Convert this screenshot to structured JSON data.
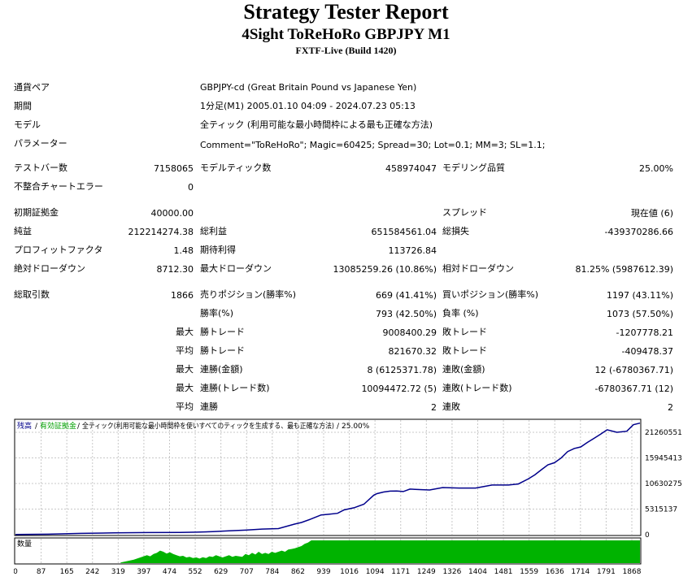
{
  "header": {
    "title": "Strategy Tester Report",
    "subtitle": "4Sight ToReHoRo GBPJPY M1",
    "server": "FXTF-Live (Build 1420)"
  },
  "info": {
    "symbol_label": "通貨ペア",
    "symbol_value": "GBPJPY-cd (Great Britain Pound vs Japanese Yen)",
    "period_label": "期間",
    "period_value": "1分足(M1) 2005.01.10 04:09 - 2024.07.23 05:13",
    "model_label": "モデル",
    "model_value": "全ティック (利用可能な最小時間枠による最も正確な方法)",
    "params_label": "パラメーター",
    "params_value": "Comment=\"ToReHoRo\"; Magic=60425; Spread=30; Lot=0.1; MM=3; SL=1.1;"
  },
  "stats": {
    "bars_label": "テストバー数",
    "bars": "7158065",
    "ticks_label": "モデルティック数",
    "ticks": "458974047",
    "quality_label": "モデリング品質",
    "quality": "25.00%",
    "mismatch_label": "不整合チャートエラー",
    "mismatch": "0",
    "deposit_label": "初期証拠金",
    "deposit": "40000.00",
    "spread_label": "スプレッド",
    "spread": "現在値 (6)",
    "net_label": "純益",
    "net": "212214274.38",
    "gross_profit_label": "総利益",
    "gross_profit": "651584561.04",
    "gross_loss_label": "総損失",
    "gross_loss": "-439370286.66",
    "pf_label": "プロフィットファクタ",
    "pf": "1.48",
    "expected_label": "期待利得",
    "expected": "113726.84",
    "abs_dd_label": "絶対ドローダウン",
    "abs_dd": "8712.30",
    "max_dd_label": "最大ドローダウン",
    "max_dd": "13085259.26 (10.86%)",
    "rel_dd_label": "相対ドローダウン",
    "rel_dd": "81.25% (5987612.39)",
    "total_trades_label": "総取引数",
    "total_trades": "1866",
    "short_label": "売りポジション(勝率%)",
    "short": "669 (41.41%)",
    "long_label": "買いポジション(勝率%)",
    "long": "1197 (43.11%)",
    "win_pct_label": "勝率(%)",
    "win_pct": "793 (42.50%)",
    "loss_pct_label": "負率 (%)",
    "loss_pct": "1073 (57.50%)",
    "max_word": "最大",
    "avg_word": "平均",
    "win_trade_label": "勝トレード",
    "loss_trade_label": "敗トレード",
    "max_win": "9008400.29",
    "max_loss": "-1207778.21",
    "avg_win": "821670.32",
    "avg_loss": "-409478.37",
    "consec_win_money_label": "連勝(金額)",
    "consec_win_money": "8 (6125371.78)",
    "consec_loss_money_label": "連敗(金額)",
    "consec_loss_money": "12 (-6780367.71)",
    "consec_win_count_label": "連勝(トレード数)",
    "consec_win_count": "10094472.72 (5)",
    "consec_loss_count_label": "連敗(トレード数)",
    "consec_loss_count": "-6780367.71 (12)",
    "avg_consec_win_label": "連勝",
    "avg_consec_win": "2",
    "avg_consec_loss_label": "連敗",
    "avg_consec_loss": "2"
  },
  "chart_data": {
    "type": "line",
    "legend": {
      "balance": "残高",
      "sep1": "/",
      "equity": "有効証拠金",
      "sep2": "/",
      "model": "全ティック(利用可能な最小時間枠を使いすべてのティックを生成する、最も正確な方法)",
      "sep3": "/",
      "quality": "25.00%"
    },
    "volume_label": "数量",
    "y_ticks": [
      "21260551",
      "15945413",
      "10630275",
      "5315137",
      "0"
    ],
    "x_ticks": [
      "0",
      "87",
      "165",
      "242",
      "319",
      "397",
      "474",
      "552",
      "629",
      "707",
      "784",
      "862",
      "939",
      "1016",
      "1094",
      "1171",
      "1249",
      "1326",
      "1404",
      "1481",
      "1559",
      "1636",
      "1714",
      "1791",
      "1868"
    ],
    "ylim": [
      0,
      22600000
    ],
    "xlim": [
      0,
      1900
    ],
    "balance_series": {
      "x": [
        0,
        100,
        200,
        300,
        400,
        500,
        550,
        600,
        650,
        700,
        750,
        800,
        850,
        870,
        900,
        930,
        950,
        980,
        1000,
        1030,
        1060,
        1090,
        1100,
        1120,
        1140,
        1160,
        1180,
        1200,
        1230,
        1260,
        1300,
        1350,
        1400,
        1450,
        1500,
        1530,
        1560,
        1580,
        1600,
        1620,
        1640,
        1660,
        1680,
        1700,
        1720,
        1740,
        1760,
        1780,
        1800,
        1830,
        1860,
        1880,
        1900
      ],
      "y": [
        40000,
        100000,
        250000,
        350000,
        420000,
        450000,
        500000,
        600000,
        750000,
        900000,
        1100000,
        1400000,
        1900000,
        2400000,
        3300000,
        3700000,
        4000000,
        4400000,
        4700000,
        5300000,
        6200000,
        7600000,
        8100000,
        8600000,
        8400000,
        8600000,
        8700000,
        8800000,
        8900000,
        9000000,
        9100000,
        9200000,
        9400000,
        9600000,
        9800000,
        10200000,
        10800000,
        11800000,
        13000000,
        13600000,
        14200000,
        15300000,
        16200000,
        17000000,
        17500000,
        18000000,
        19000000,
        20000000,
        20500000,
        20200000,
        20600000,
        21500000,
        22000000
      ]
    },
    "volume": {
      "x": [
        320,
        360,
        380,
        400,
        410,
        420,
        430,
        440,
        450,
        460,
        470,
        480,
        490,
        500,
        510,
        520,
        530,
        540,
        550,
        560,
        570,
        580,
        590,
        600,
        610,
        620,
        630,
        640,
        650,
        660,
        670,
        680,
        690,
        700,
        710,
        720,
        730,
        740,
        750,
        760,
        770,
        780,
        790,
        800,
        810,
        820,
        830,
        840,
        850,
        860,
        870,
        880,
        890,
        900,
        1900
      ],
      "v": [
        0.03,
        0.15,
        0.25,
        0.35,
        0.3,
        0.4,
        0.45,
        0.55,
        0.5,
        0.42,
        0.48,
        0.4,
        0.35,
        0.3,
        0.32,
        0.25,
        0.28,
        0.22,
        0.25,
        0.2,
        0.26,
        0.22,
        0.3,
        0.27,
        0.35,
        0.3,
        0.25,
        0.3,
        0.35,
        0.28,
        0.32,
        0.3,
        0.28,
        0.4,
        0.35,
        0.45,
        0.38,
        0.5,
        0.4,
        0.45,
        0.4,
        0.5,
        0.45,
        0.5,
        0.55,
        0.5,
        0.6,
        0.62,
        0.65,
        0.7,
        0.75,
        0.85,
        0.9,
        1.0,
        1.0
      ]
    }
  }
}
